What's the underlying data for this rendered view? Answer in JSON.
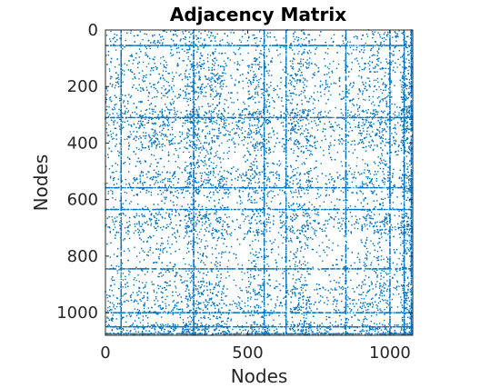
{
  "chart_data": {
    "type": "scatter",
    "title": "Adjacency Matrix",
    "xlabel": "Nodes",
    "ylabel": "Nodes",
    "xlim": [
      0,
      1080
    ],
    "ylim": [
      1080,
      0
    ],
    "y_reversed": true,
    "marker_color": "#0072BD",
    "axis_color": "#262626",
    "grid": false,
    "xticks": [
      0,
      500,
      1000
    ],
    "yticks": [
      0,
      200,
      400,
      600,
      800,
      1000
    ],
    "xtick_labels": [
      "0",
      "500",
      "1000"
    ],
    "ytick_labels": [
      "0",
      "200",
      "400",
      "600",
      "800",
      "1000"
    ],
    "matrix_size": 1080,
    "nonzeros_approx": 9000,
    "dense_rows": [
      55,
      310,
      558,
      635,
      845,
      1000,
      1050,
      1075
    ],
    "dense_cols": [
      55,
      310,
      558,
      635,
      845,
      1000,
      1050,
      1075
    ],
    "dense_row_fill": 0.55,
    "background_density": 0.0055
  }
}
